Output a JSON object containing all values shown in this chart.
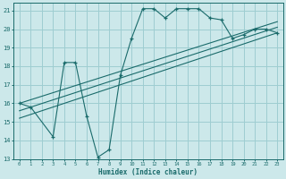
{
  "xlabel": "Humidex (Indice chaleur)",
  "bg_color": "#cce8ea",
  "grid_color": "#9ecdd1",
  "line_color": "#1a6b6b",
  "xlim": [
    -0.5,
    23.5
  ],
  "ylim": [
    13,
    21.4
  ],
  "xticks": [
    0,
    1,
    2,
    3,
    4,
    5,
    6,
    7,
    8,
    9,
    10,
    11,
    12,
    13,
    14,
    15,
    16,
    17,
    18,
    19,
    20,
    21,
    22,
    23
  ],
  "yticks": [
    13,
    14,
    15,
    16,
    17,
    18,
    19,
    20,
    21
  ],
  "main_line_x": [
    0,
    1,
    3,
    4,
    5,
    6,
    7,
    8,
    9,
    10,
    11,
    12,
    13,
    14,
    15,
    16,
    17,
    18,
    19,
    20,
    21,
    22,
    23
  ],
  "main_line_y": [
    16.0,
    15.8,
    14.2,
    18.2,
    18.2,
    15.3,
    13.1,
    13.5,
    17.5,
    19.5,
    21.1,
    21.1,
    20.6,
    21.1,
    21.1,
    21.1,
    20.6,
    20.5,
    19.5,
    19.7,
    20.0,
    20.0,
    19.8
  ],
  "reg_line1_x": [
    0,
    23
  ],
  "reg_line1_y": [
    15.6,
    20.1
  ],
  "reg_line2_x": [
    0,
    23
  ],
  "reg_line2_y": [
    16.0,
    20.4
  ],
  "reg_line3_x": [
    0,
    23
  ],
  "reg_line3_y": [
    15.2,
    19.8
  ]
}
